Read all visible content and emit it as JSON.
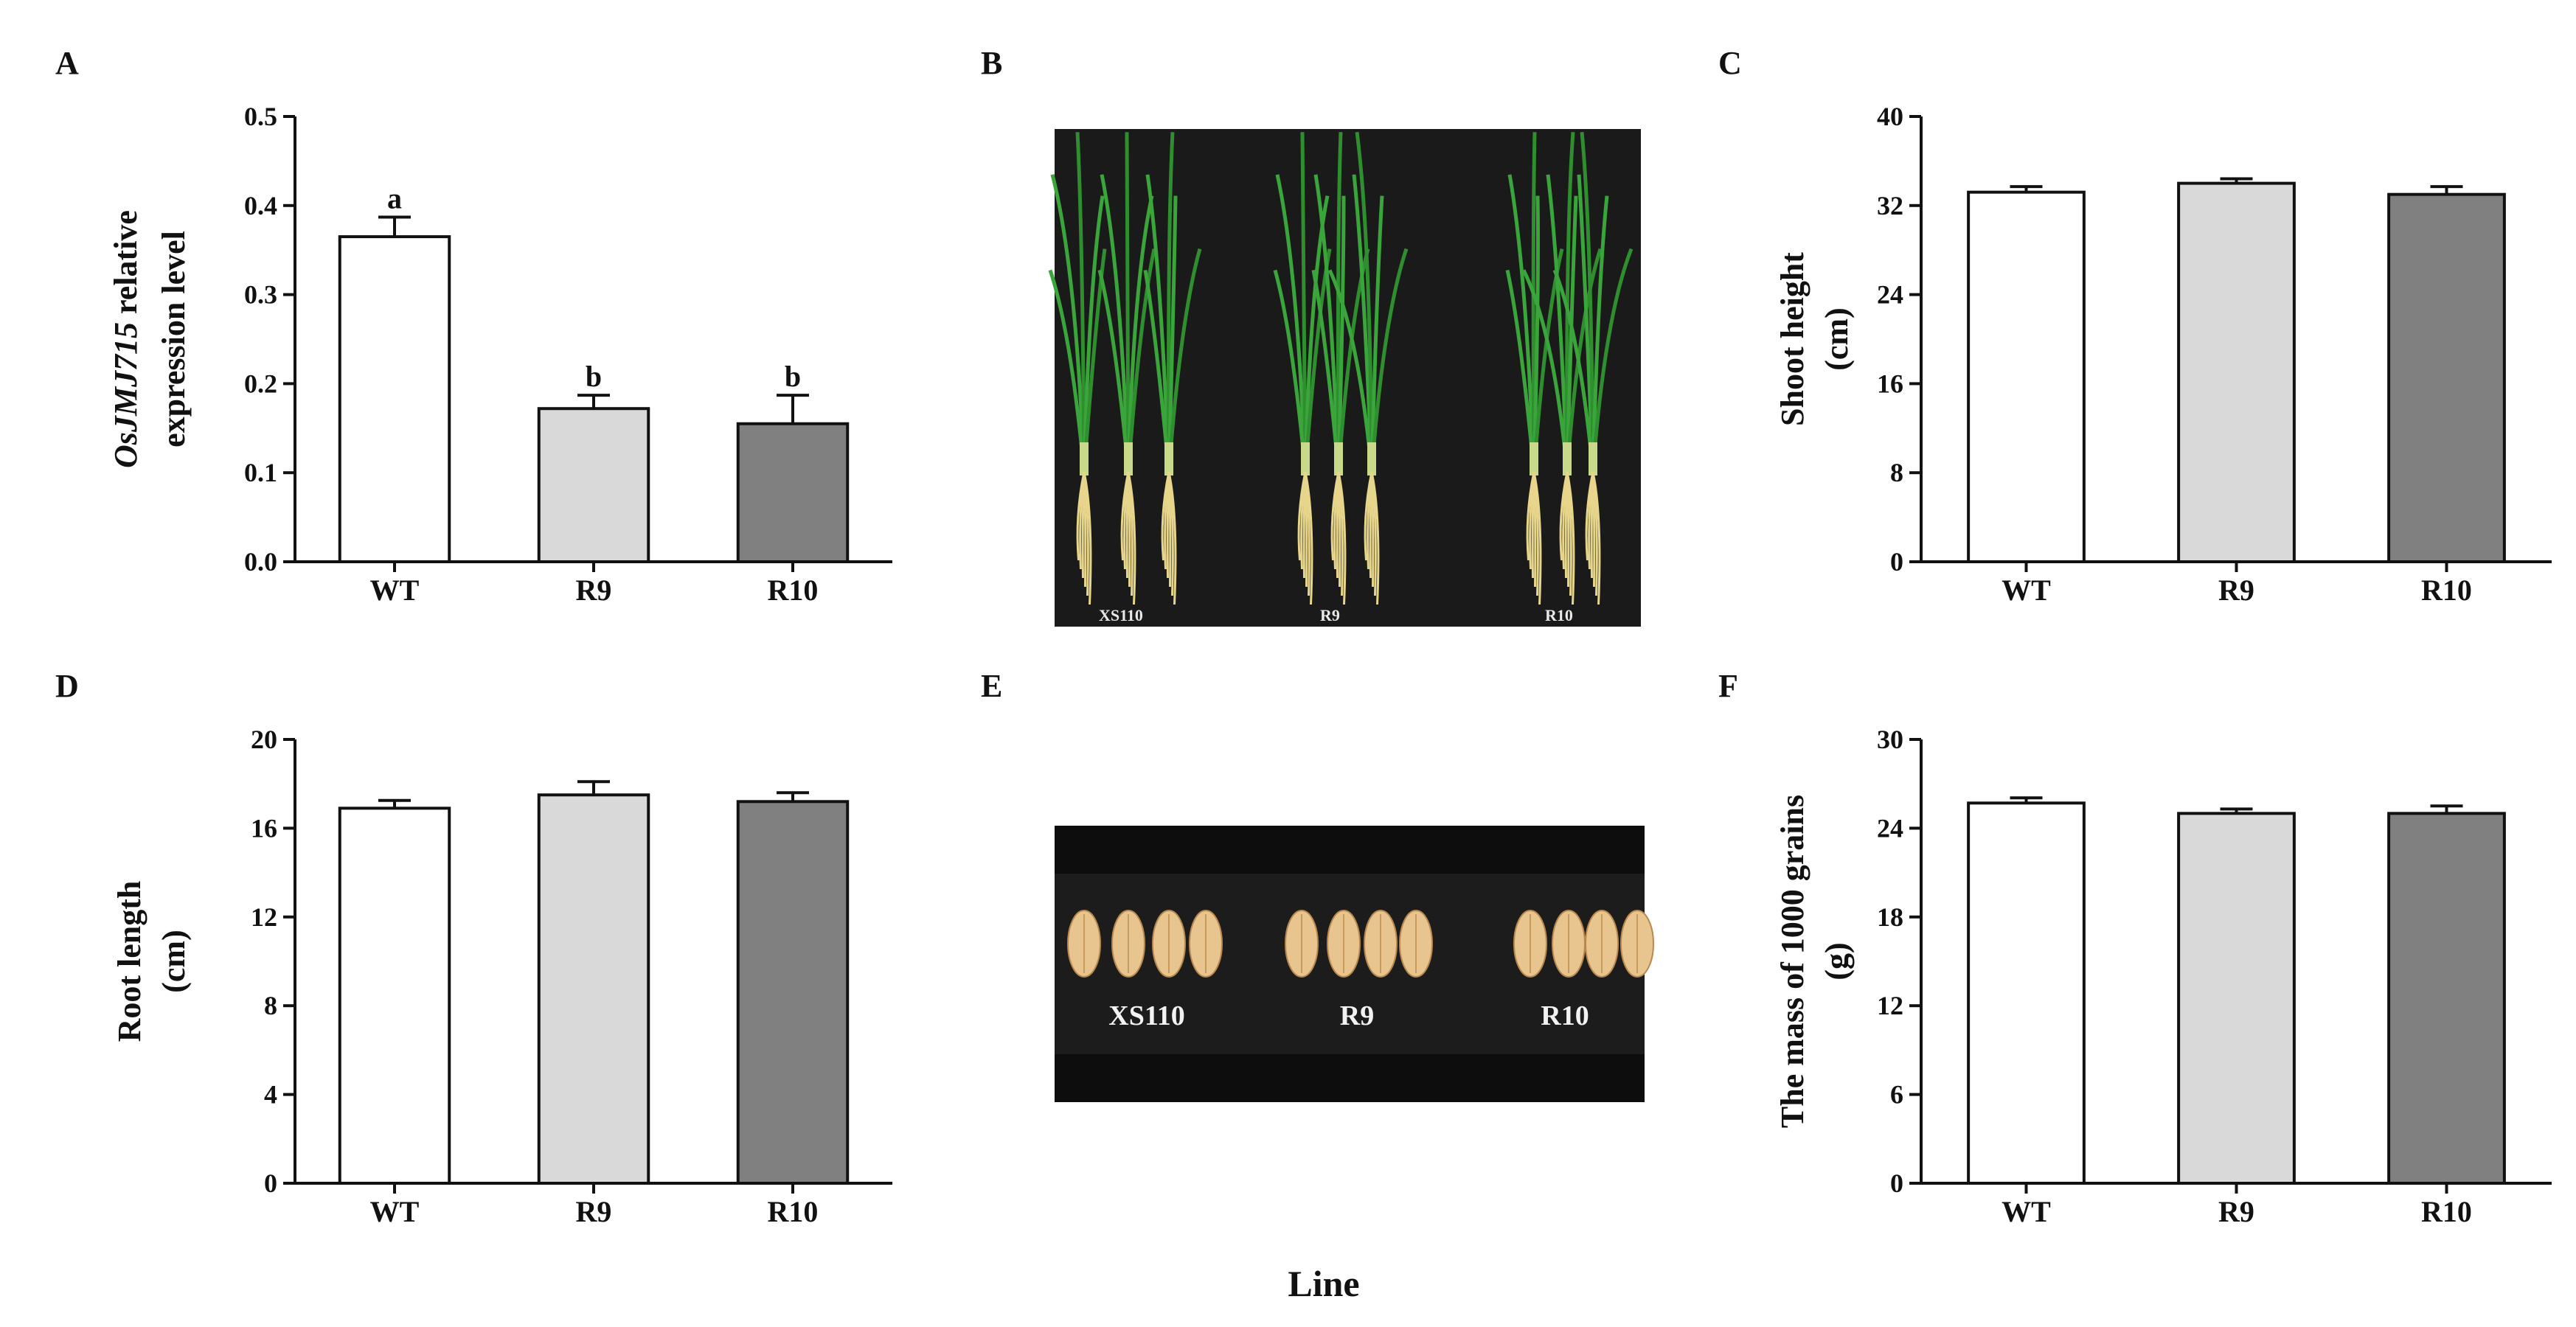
{
  "figure": {
    "shared_xlabel": "Line",
    "colors": {
      "WT": "#ffffff",
      "R9": "#d9d9d9",
      "R10": "#808080",
      "photo_bg": "#1a1a1a",
      "grain": "#e8c48f"
    }
  },
  "panels": {
    "A": {
      "letter": "A"
    },
    "B": {
      "letter": "B",
      "labels": [
        "XS110",
        "R9",
        "R10"
      ]
    },
    "C": {
      "letter": "C"
    },
    "D": {
      "letter": "D"
    },
    "E": {
      "letter": "E",
      "labels": [
        "XS110",
        "R9",
        "R10"
      ]
    },
    "F": {
      "letter": "F"
    }
  },
  "chart_data": [
    {
      "panel": "A",
      "type": "bar",
      "categories": [
        "WT",
        "R9",
        "R10"
      ],
      "values": [
        0.365,
        0.172,
        0.155
      ],
      "errors": [
        0.022,
        0.015,
        0.032
      ],
      "significance": [
        "a",
        "b",
        "b"
      ],
      "ylabel_italic": "OsJMJ715",
      "ylabel_rest": " relative",
      "ylabel_line2": "expression level",
      "ylim": [
        0,
        0.5
      ],
      "yticks": [
        "0.0",
        "0.1",
        "0.2",
        "0.3",
        "0.4",
        "0.5"
      ]
    },
    {
      "panel": "C",
      "type": "bar",
      "categories": [
        "WT",
        "R9",
        "R10"
      ],
      "values": [
        33.2,
        34.0,
        33.0
      ],
      "errors": [
        0.5,
        0.4,
        0.7
      ],
      "ylabel_line1": "Shoot height",
      "ylabel_line2": "(cm)",
      "ylim": [
        0,
        40
      ],
      "yticks": [
        "0",
        "8",
        "16",
        "24",
        "32",
        "40"
      ]
    },
    {
      "panel": "D",
      "type": "bar",
      "categories": [
        "WT",
        "R9",
        "R10"
      ],
      "values": [
        16.9,
        17.5,
        17.2
      ],
      "errors": [
        0.35,
        0.6,
        0.4
      ],
      "ylabel_line1": "Root length",
      "ylabel_line2": "(cm)",
      "ylim": [
        0,
        20
      ],
      "yticks": [
        "0",
        "4",
        "8",
        "12",
        "16",
        "20"
      ]
    },
    {
      "panel": "F",
      "type": "bar",
      "categories": [
        "WT",
        "R9",
        "R10"
      ],
      "values": [
        25.7,
        25.0,
        25.0
      ],
      "errors": [
        0.35,
        0.3,
        0.5
      ],
      "ylabel_line1": "The mass of 1000 grains",
      "ylabel_line2": "(g)",
      "ylim": [
        0,
        30
      ],
      "yticks": [
        "0",
        "6",
        "12",
        "18",
        "24",
        "30"
      ]
    }
  ]
}
